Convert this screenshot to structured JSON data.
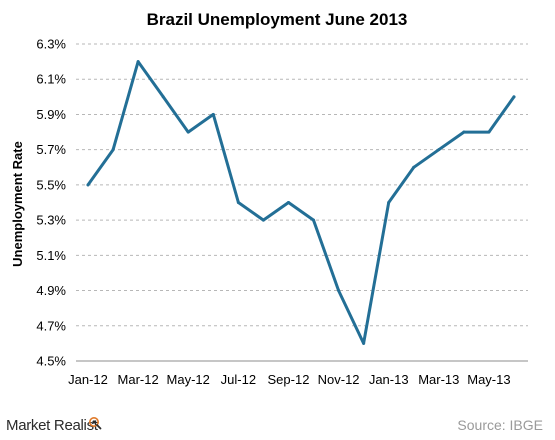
{
  "chart_data": {
    "type": "line",
    "title": "Brazil Unemployment June 2013",
    "xlabel": "",
    "ylabel": "Unemployment Rate",
    "categories": [
      "Jan-12",
      "Feb-12",
      "Mar-12",
      "Apr-12",
      "May-12",
      "Jun-12",
      "Jul-12",
      "Aug-12",
      "Sep-12",
      "Oct-12",
      "Nov-12",
      "Dec-12",
      "Jan-13",
      "Feb-13",
      "Mar-13",
      "Apr-13",
      "May-13",
      "Jun-13"
    ],
    "x_tick_labels": [
      "Jan-12",
      "Mar-12",
      "May-12",
      "Jul-12",
      "Sep-12",
      "Nov-12",
      "Jan-13",
      "Mar-13",
      "May-13"
    ],
    "series": [
      {
        "values": [
          5.5,
          5.7,
          6.2,
          6.0,
          5.8,
          5.9,
          5.4,
          5.3,
          5.4,
          5.3,
          4.9,
          4.6,
          5.4,
          5.6,
          5.7,
          5.8,
          5.8,
          6.0
        ],
        "color": "#236f96"
      }
    ],
    "y_ticks": [
      4.5,
      4.7,
      4.9,
      5.1,
      5.3,
      5.5,
      5.7,
      5.9,
      6.1,
      6.3
    ],
    "y_tick_labels": [
      "4.5%",
      "4.7%",
      "4.9%",
      "5.1%",
      "5.3%",
      "5.5%",
      "5.7%",
      "5.9%",
      "6.1%",
      "6.3%"
    ],
    "ylim": [
      4.5,
      6.3
    ],
    "grid": "horizontal dashed",
    "legend": "none"
  },
  "source": "Source: IBGE",
  "brand": {
    "name": "Market Realist",
    "icon": "magnifier-icon"
  },
  "colors": {
    "line": "#236f96",
    "grid": "#b7b7b7",
    "axis": "#8c8c8c",
    "source": "#9a9a9a"
  }
}
